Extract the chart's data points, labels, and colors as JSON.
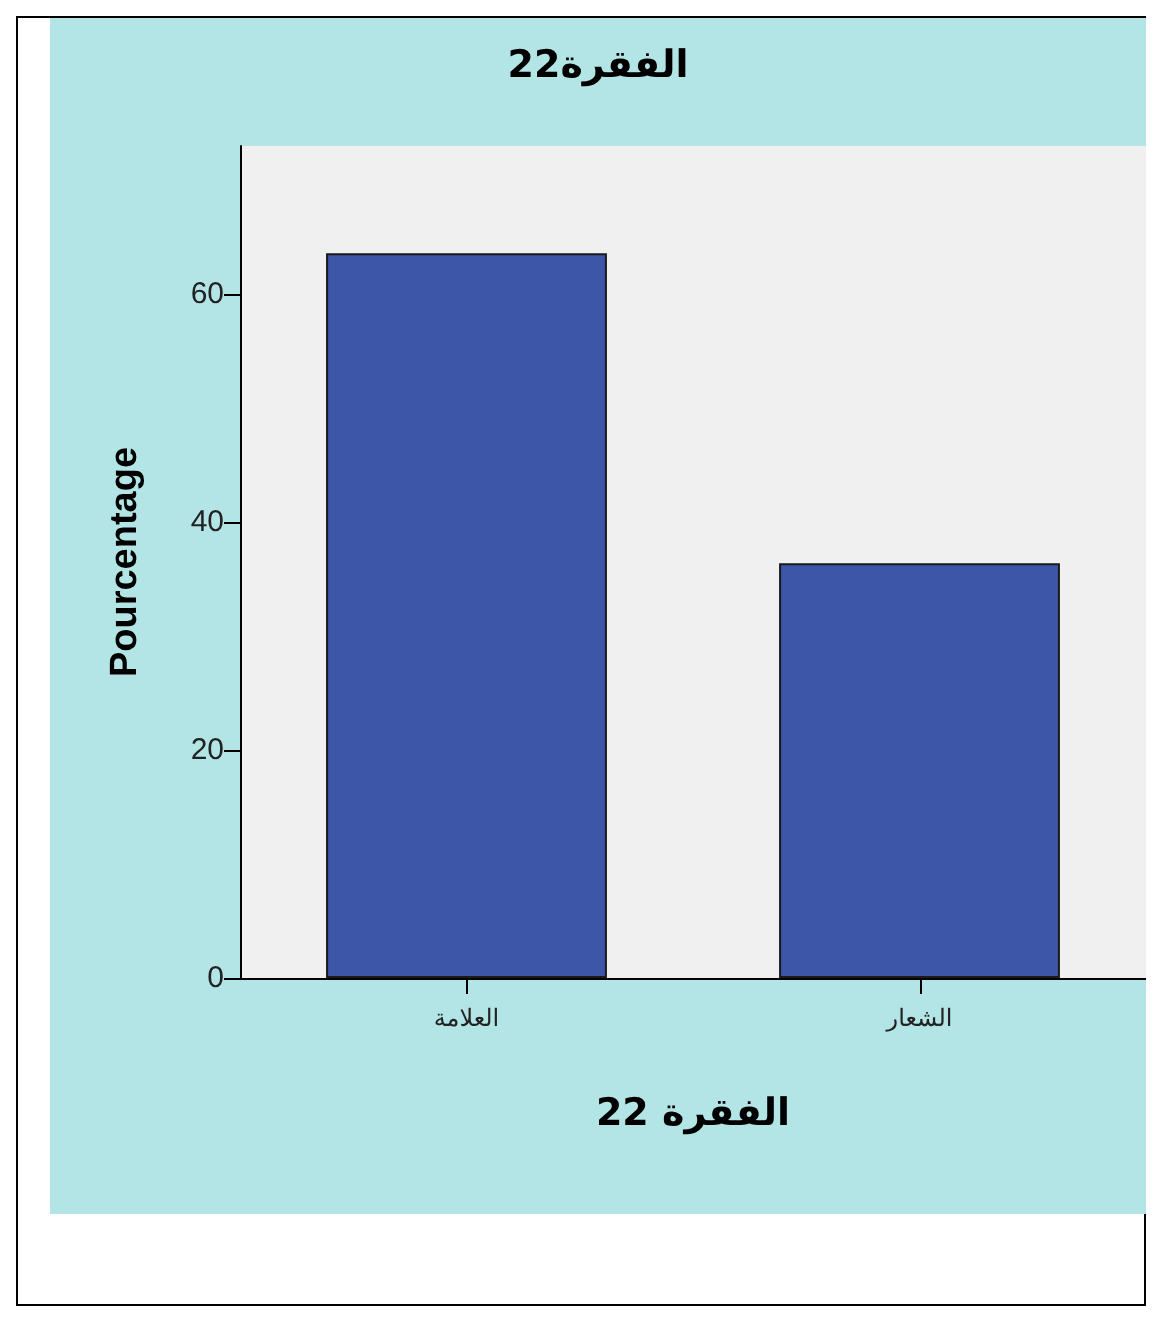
{
  "chart_data": {
    "type": "bar",
    "title": "الفقرة22",
    "xlabel": "22 الفقرة",
    "ylabel": "Pourcentage",
    "categories": [
      "العلامة",
      "الشعار"
    ],
    "values": [
      63.6,
      36.4
    ],
    "color": "#3d56a8",
    "ylim": [
      0,
      73
    ],
    "yticks": [
      0,
      20,
      40,
      60
    ],
    "grid": false
  }
}
